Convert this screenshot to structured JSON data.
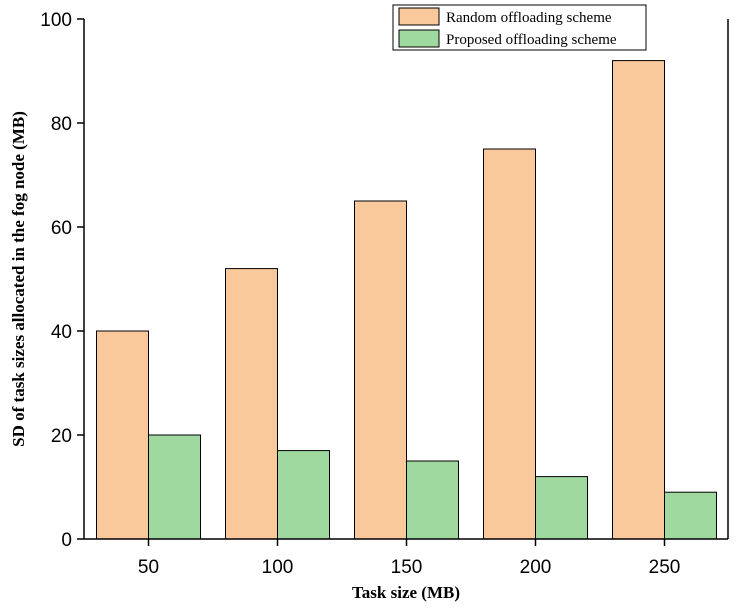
{
  "chart_data": {
    "type": "bar",
    "title": "",
    "xlabel": "Task size (MB)",
    "ylabel": "SD of task sizes allocated in the fog node (MB)",
    "categories": [
      "50",
      "100",
      "150",
      "200",
      "250"
    ],
    "series": [
      {
        "name": "Random offloading scheme",
        "color": "#f9c89b",
        "values": [
          40,
          52,
          65,
          75,
          92
        ]
      },
      {
        "name": "Proposed offloading scheme",
        "color": "#a0d9a0",
        "values": [
          20,
          17,
          15,
          12,
          9
        ]
      }
    ],
    "ylim": [
      0,
      100
    ],
    "yticks": [
      "0",
      "20",
      "40",
      "60",
      "80",
      "100"
    ],
    "grid": false,
    "legend_position": "top-right"
  }
}
